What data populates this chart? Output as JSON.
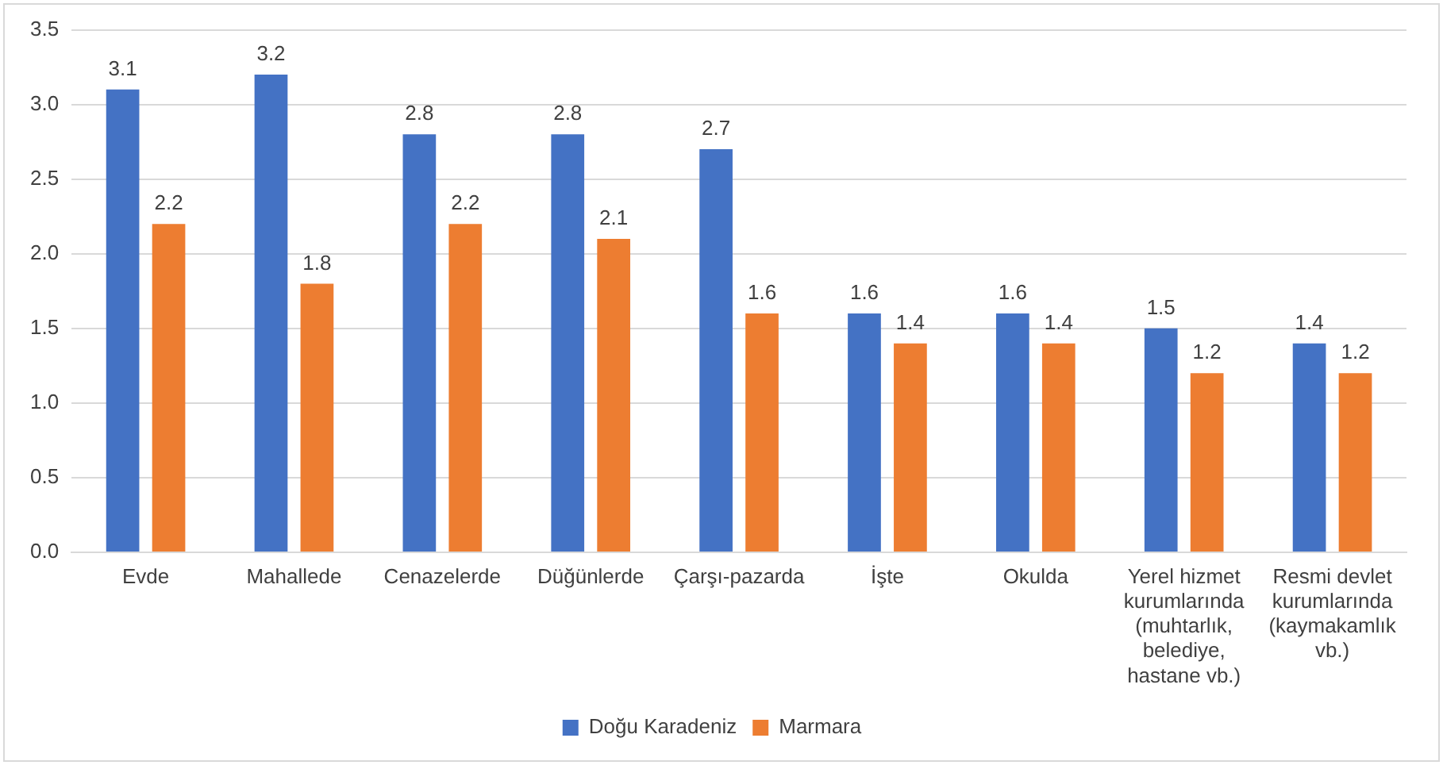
{
  "chart_data": {
    "type": "bar",
    "categories": [
      "Evde",
      "Mahallede",
      "Cenazelerde",
      "Düğünlerde",
      "Çarşı-pazarda",
      "İşte",
      "Okulda",
      "Yerel hizmet kurumlarında (muhtarlık, belediye, hastane vb.)",
      "Resmi devlet kurumlarında (kaymakamlık vb.)"
    ],
    "series": [
      {
        "name": "Doğu Karadeniz",
        "color": "#4472c4",
        "values": [
          3.1,
          3.2,
          2.8,
          2.8,
          2.7,
          1.6,
          1.6,
          1.5,
          1.4
        ]
      },
      {
        "name": "Marmara",
        "color": "#ed7d31",
        "values": [
          2.2,
          1.8,
          2.2,
          2.1,
          1.6,
          1.4,
          1.4,
          1.2,
          1.2
        ]
      }
    ],
    "ylim": [
      0,
      3.5
    ],
    "yticks": [
      {
        "value": 0,
        "label": "0.0"
      },
      {
        "value": 0.5,
        "label": "0.5"
      },
      {
        "value": 1,
        "label": "1.0"
      },
      {
        "value": 1.5,
        "label": "1.5"
      },
      {
        "value": 2,
        "label": "2.0"
      },
      {
        "value": 2.5,
        "label": "2.5"
      },
      {
        "value": 3,
        "label": "3.0"
      },
      {
        "value": 3.5,
        "label": "3.5"
      }
    ],
    "grid": "y",
    "legend": "bottom",
    "data_labels": true
  }
}
